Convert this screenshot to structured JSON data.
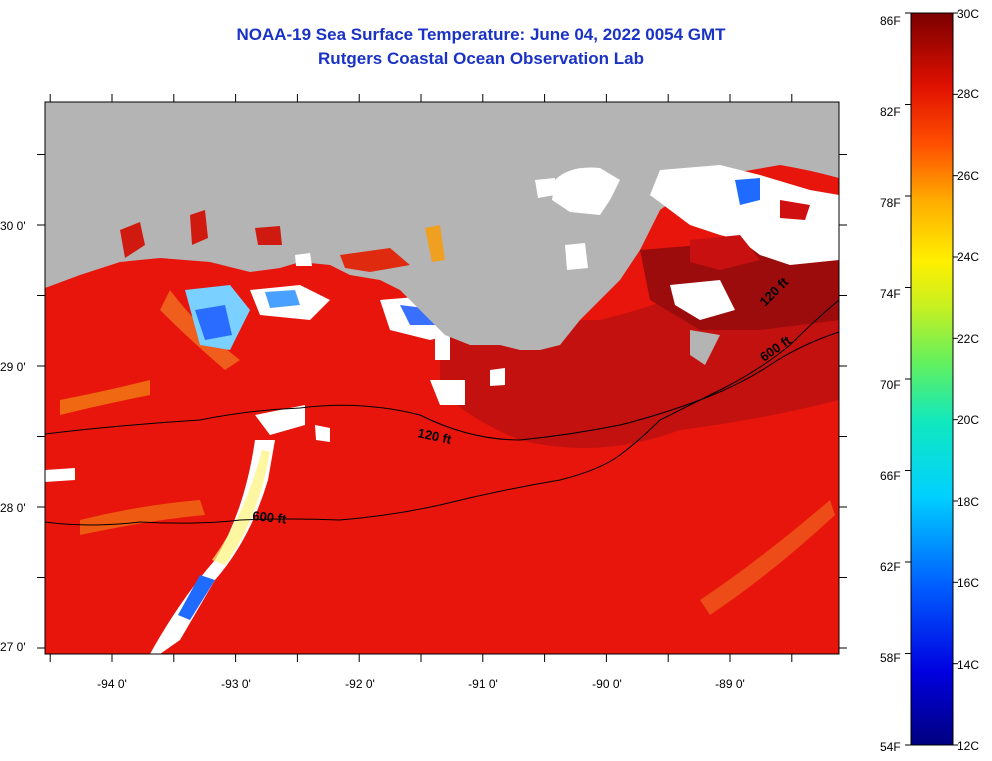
{
  "header": {
    "title": "NOAA-19 Sea Surface Temperature:  June 04, 2022 0054 GMT",
    "subtitle": "Rutgers Coastal Ocean Observation Lab"
  },
  "axes": {
    "longitude_labels": [
      "-94 0'",
      "-93 0'",
      "-92 0'",
      "-91 0'",
      "-90 0'",
      "-89 0'"
    ],
    "latitude_labels": [
      "30 0'",
      "29 0'",
      "28 0'",
      "27 0'"
    ]
  },
  "contours": {
    "shelf_120": "120 ft",
    "shelf_600": "600 ft"
  },
  "colorbar": {
    "fahrenheit_labels": [
      "86F",
      "82F",
      "78F",
      "74F",
      "70F",
      "66F",
      "62F",
      "58F",
      "54F"
    ],
    "celsius_labels": [
      "30C",
      "28C",
      "26C",
      "24C",
      "22C",
      "20C",
      "18C",
      "16C",
      "14C",
      "12C"
    ],
    "range_f": [
      54,
      86
    ],
    "range_c": [
      12,
      30
    ]
  },
  "colors": {
    "title": "#1a33c4",
    "land": "#b4b4b4",
    "cloud": "#ffffff",
    "ocean_warm": "#e8150c",
    "ocean_deep": "#a81010"
  }
}
